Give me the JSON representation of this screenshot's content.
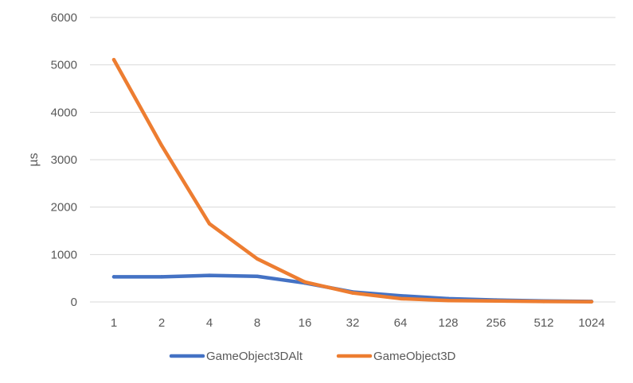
{
  "chart_data": {
    "type": "line",
    "title": "",
    "xlabel": "",
    "ylabel": "µs",
    "categories": [
      "1",
      "2",
      "4",
      "8",
      "16",
      "32",
      "64",
      "128",
      "256",
      "512",
      "1024"
    ],
    "ylim": [
      0,
      6000
    ],
    "yticks": [
      0,
      1000,
      2000,
      3000,
      4000,
      5000,
      6000
    ],
    "grid": true,
    "legend_position": "bottom",
    "series": [
      {
        "name": "GameObject3DAlt",
        "color": "#4472C4",
        "values": [
          530,
          530,
          560,
          540,
          400,
          210,
          130,
          70,
          40,
          20,
          10
        ]
      },
      {
        "name": "GameObject3D",
        "color": "#ED7D31",
        "values": [
          5110,
          3300,
          1650,
          910,
          420,
          190,
          70,
          30,
          20,
          10,
          5
        ]
      }
    ]
  }
}
